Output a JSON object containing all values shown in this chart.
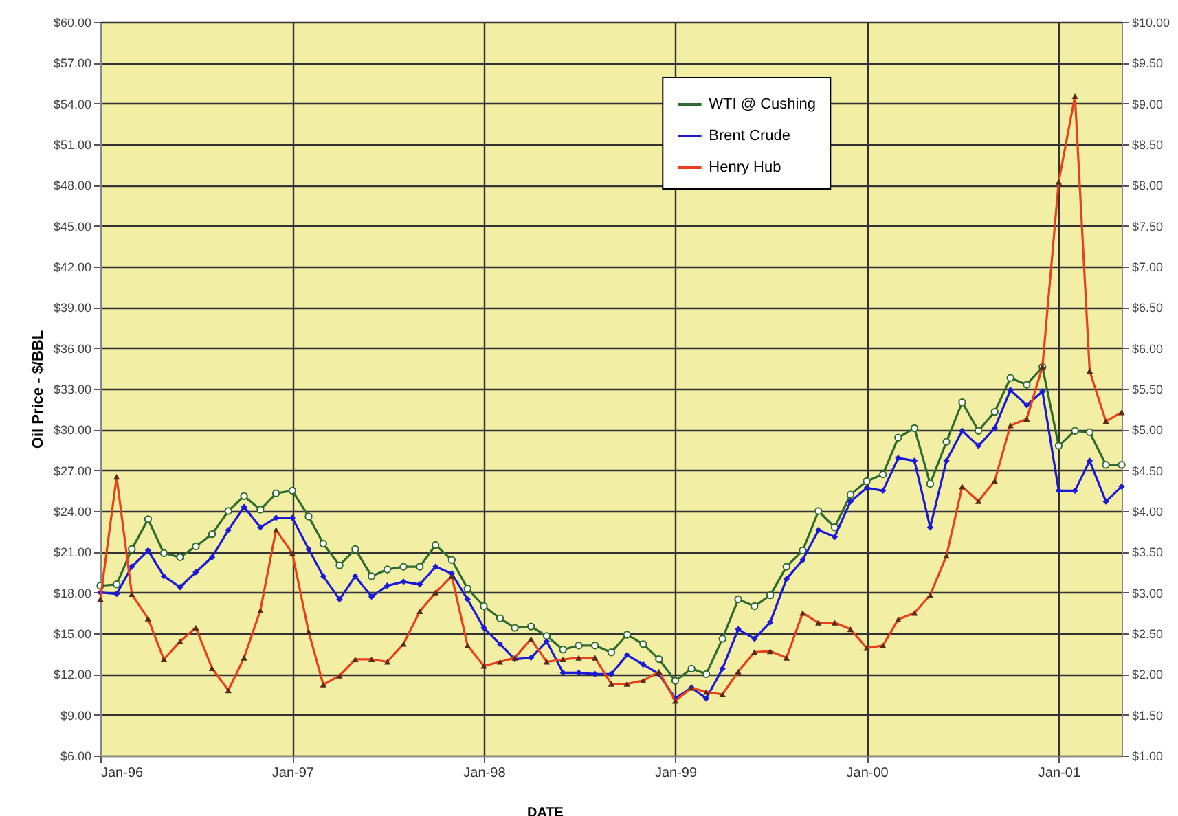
{
  "chart_data": {
    "type": "line",
    "xlabel": "DATE",
    "ylabel": "Oil Price - $/BBL",
    "x": [
      "1996-01",
      "1996-02",
      "1996-03",
      "1996-04",
      "1996-05",
      "1996-06",
      "1996-07",
      "1996-08",
      "1996-09",
      "1996-10",
      "1996-11",
      "1996-12",
      "1997-01",
      "1997-02",
      "1997-03",
      "1997-04",
      "1997-05",
      "1997-06",
      "1997-07",
      "1997-08",
      "1997-09",
      "1997-10",
      "1997-11",
      "1997-12",
      "1998-01",
      "1998-02",
      "1998-03",
      "1998-04",
      "1998-05",
      "1998-06",
      "1998-07",
      "1998-08",
      "1998-09",
      "1998-10",
      "1998-11",
      "1998-12",
      "1999-01",
      "1999-02",
      "1999-03",
      "1999-04",
      "1999-05",
      "1999-06",
      "1999-07",
      "1999-08",
      "1999-09",
      "1999-10",
      "1999-11",
      "1999-12",
      "2000-01",
      "2000-02",
      "2000-03",
      "2000-04",
      "2000-05",
      "2000-06",
      "2000-07",
      "2000-08",
      "2000-09",
      "2000-10",
      "2000-11",
      "2000-12",
      "2001-01",
      "2001-02",
      "2001-03",
      "2001-04",
      "2001-05"
    ],
    "series": [
      {
        "name": "WTI @ Cushing",
        "color": "#2e6b2e",
        "marker": "circle",
        "values": [
          18.5,
          18.6,
          21.2,
          23.4,
          20.9,
          20.6,
          21.4,
          22.3,
          24.0,
          25.1,
          24.1,
          25.3,
          25.5,
          23.6,
          21.6,
          20.0,
          21.2,
          19.2,
          19.7,
          19.9,
          19.9,
          21.5,
          20.4,
          18.3,
          17.0,
          16.1,
          15.4,
          15.5,
          14.8,
          13.8,
          14.1,
          14.1,
          13.6,
          14.9,
          14.2,
          13.1,
          11.5,
          12.4,
          12.0,
          14.6,
          17.5,
          17.0,
          17.8,
          19.9,
          21.1,
          24.0,
          22.8,
          25.2,
          26.2,
          26.7,
          29.4,
          30.1,
          26.0,
          29.1,
          32.0,
          29.9,
          31.3,
          33.8,
          33.3,
          34.6,
          28.8,
          29.9,
          29.8,
          27.4,
          27.4
        ]
      },
      {
        "name": "Brent Crude",
        "color": "#1a1ad6",
        "marker": "diamond",
        "values": [
          18.0,
          17.9,
          19.9,
          21.1,
          19.2,
          18.4,
          19.5,
          20.6,
          22.6,
          24.3,
          22.8,
          23.5,
          23.5,
          21.2,
          19.2,
          17.5,
          19.2,
          17.7,
          18.5,
          18.8,
          18.6,
          19.9,
          19.4,
          17.5,
          15.4,
          14.2,
          13.1,
          13.2,
          14.4,
          12.1,
          12.1,
          12.0,
          12.0,
          13.4,
          12.7,
          12.0,
          10.2,
          11.0,
          10.2,
          12.4,
          15.3,
          14.6,
          15.8,
          19.0,
          20.4,
          22.6,
          22.1,
          24.7,
          25.7,
          25.5,
          27.9,
          27.7,
          22.8,
          27.7,
          29.9,
          28.8,
          30.1,
          32.9,
          31.8,
          32.8,
          25.5,
          25.5,
          27.7,
          24.7,
          25.8
        ]
      },
      {
        "name": "Henry Hub",
        "color": "#e8401a",
        "marker": "triangle",
        "axis": "y2",
        "values": [
          2.92,
          4.42,
          2.98,
          2.68,
          2.18,
          2.4,
          2.57,
          2.07,
          1.8,
          2.2,
          2.78,
          3.77,
          3.48,
          2.52,
          1.87,
          1.98,
          2.18,
          2.18,
          2.15,
          2.37,
          2.77,
          3.0,
          3.2,
          2.35,
          2.1,
          2.15,
          2.2,
          2.43,
          2.15,
          2.18,
          2.2,
          2.2,
          1.88,
          1.88,
          1.92,
          2.03,
          1.67,
          1.83,
          1.78,
          1.75,
          2.03,
          2.27,
          2.28,
          2.2,
          2.75,
          2.63,
          2.63,
          2.55,
          2.32,
          2.35,
          2.67,
          2.75,
          2.97,
          3.45,
          4.3,
          4.12,
          4.37,
          5.05,
          5.13,
          5.77,
          8.04,
          9.09,
          5.72,
          5.1,
          5.21
        ]
      }
    ],
    "xlim": [
      "1996-01",
      "2001-05"
    ],
    "xticks": [
      {
        "value": "1996-01",
        "label": "Jan-96"
      },
      {
        "value": "1997-01",
        "label": "Jan-97"
      },
      {
        "value": "1998-01",
        "label": "Jan-98"
      },
      {
        "value": "1999-01",
        "label": "Jan-99"
      },
      {
        "value": "2000-01",
        "label": "Jan-00"
      },
      {
        "value": "2001-01",
        "label": "Jan-01"
      }
    ],
    "ylim": [
      6,
      60
    ],
    "yticks": [
      {
        "value": 6,
        "label": "$6.00"
      },
      {
        "value": 9,
        "label": "$9.00"
      },
      {
        "value": 12,
        "label": "$12.00"
      },
      {
        "value": 15,
        "label": "$15.00"
      },
      {
        "value": 18,
        "label": "$18.00"
      },
      {
        "value": 21,
        "label": "$21.00"
      },
      {
        "value": 24,
        "label": "$24.00"
      },
      {
        "value": 27,
        "label": "$27.00"
      },
      {
        "value": 30,
        "label": "$30.00"
      },
      {
        "value": 33,
        "label": "$33.00"
      },
      {
        "value": 36,
        "label": "$36.00"
      },
      {
        "value": 39,
        "label": "$39.00"
      },
      {
        "value": 42,
        "label": "$42.00"
      },
      {
        "value": 45,
        "label": "$45.00"
      },
      {
        "value": 48,
        "label": "$48.00"
      },
      {
        "value": 51,
        "label": "$51.00"
      },
      {
        "value": 54,
        "label": "$54.00"
      },
      {
        "value": 57,
        "label": "$57.00"
      },
      {
        "value": 60,
        "label": "$60.00"
      }
    ],
    "y2lim": [
      1,
      10
    ],
    "y2ticks": [
      {
        "value": 1,
        "label": "$1.00"
      },
      {
        "value": 1.5,
        "label": "$1.50"
      },
      {
        "value": 2,
        "label": "$2.00"
      },
      {
        "value": 2.5,
        "label": "$2.50"
      },
      {
        "value": 3,
        "label": "$3.00"
      },
      {
        "value": 3.5,
        "label": "$3.50"
      },
      {
        "value": 4,
        "label": "$4.00"
      },
      {
        "value": 4.5,
        "label": "$4.50"
      },
      {
        "value": 5,
        "label": "$5.00"
      },
      {
        "value": 5.5,
        "label": "$5.50"
      },
      {
        "value": 6,
        "label": "$6.00"
      },
      {
        "value": 6.5,
        "label": "$6.50"
      },
      {
        "value": 7,
        "label": "$7.00"
      },
      {
        "value": 7.5,
        "label": "$7.50"
      },
      {
        "value": 8,
        "label": "$8.00"
      },
      {
        "value": 8.5,
        "label": "$8.50"
      },
      {
        "value": 9,
        "label": "$9.00"
      },
      {
        "value": 9.5,
        "label": "$9.50"
      },
      {
        "value": 10,
        "label": "$10.00"
      }
    ],
    "grid": true,
    "legend": "top"
  }
}
